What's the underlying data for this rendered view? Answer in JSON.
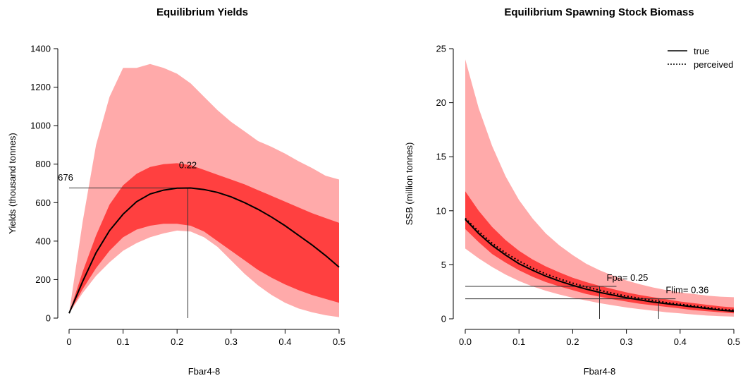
{
  "colors": {
    "outer_band": "#ffaaaa",
    "inner_band": "#ff4040",
    "line": "#000000"
  },
  "chart_data": [
    {
      "type": "area",
      "title": "Equilibrium Yields",
      "xlabel": "Fbar4-8",
      "ylabel": "Yields (thousand tonnes)",
      "xlim": [
        0,
        0.5
      ],
      "ylim": [
        0,
        1400
      ],
      "xticks": [
        0,
        0.1,
        0.2,
        0.3,
        0.4,
        0.5
      ],
      "xtick_labels": [
        "0",
        "0.1",
        "0.2",
        "0.3",
        "0.4",
        "0.5"
      ],
      "yticks": [
        0,
        200,
        400,
        600,
        800,
        1000,
        1200,
        1400
      ],
      "ytick_labels": [
        "0",
        "200",
        "400",
        "600",
        "800",
        "1000",
        "1200",
        "1400"
      ],
      "x": [
        0,
        0.025,
        0.05,
        0.075,
        0.1,
        0.125,
        0.15,
        0.175,
        0.2,
        0.225,
        0.25,
        0.275,
        0.3,
        0.325,
        0.35,
        0.375,
        0.4,
        0.425,
        0.45,
        0.475,
        0.5
      ],
      "series": [
        {
          "role": "median",
          "values": [
            25,
            190,
            340,
            455,
            540,
            605,
            645,
            665,
            675,
            676,
            668,
            653,
            630,
            600,
            565,
            525,
            480,
            430,
            380,
            325,
            265
          ]
        },
        {
          "role": "inner_band_upper",
          "values": [
            25,
            240,
            430,
            590,
            690,
            750,
            785,
            800,
            805,
            795,
            770,
            745,
            720,
            695,
            665,
            635,
            605,
            575,
            545,
            520,
            495
          ]
        },
        {
          "role": "inner_band_lower",
          "values": [
            25,
            150,
            260,
            350,
            420,
            460,
            480,
            490,
            490,
            480,
            450,
            400,
            350,
            300,
            250,
            210,
            175,
            145,
            120,
            100,
            80
          ]
        },
        {
          "role": "outer_band_upper",
          "values": [
            25,
            500,
            900,
            1150,
            1300,
            1300,
            1320,
            1300,
            1270,
            1220,
            1150,
            1080,
            1020,
            970,
            920,
            890,
            855,
            815,
            780,
            740,
            720
          ]
        },
        {
          "role": "outer_band_lower",
          "values": [
            25,
            130,
            220,
            290,
            350,
            390,
            420,
            440,
            455,
            450,
            420,
            370,
            300,
            230,
            170,
            120,
            80,
            50,
            30,
            15,
            5
          ]
        }
      ],
      "reference": {
        "x": 0.22,
        "y": 676
      },
      "annotations": [
        {
          "text": "0.22",
          "x": 0.22,
          "y": 790
        },
        {
          "text": "676",
          "x": -0.005,
          "y": 715
        }
      ]
    },
    {
      "type": "area",
      "title": "Equilibrium Spawning Stock Biomass",
      "xlabel": "Fbar4-8",
      "ylabel": "SSB (million tonnes)",
      "xlim": [
        0,
        0.5
      ],
      "ylim": [
        0,
        25
      ],
      "xticks": [
        0,
        0.1,
        0.2,
        0.3,
        0.4,
        0.5
      ],
      "xtick_labels": [
        "0.0",
        "0.1",
        "0.2",
        "0.3",
        "0.4",
        "0.5"
      ],
      "yticks": [
        0,
        5,
        10,
        15,
        20,
        25
      ],
      "ytick_labels": [
        "0",
        "5",
        "10",
        "15",
        "20",
        "25"
      ],
      "x": [
        0,
        0.025,
        0.05,
        0.075,
        0.1,
        0.125,
        0.15,
        0.175,
        0.2,
        0.225,
        0.25,
        0.275,
        0.3,
        0.325,
        0.35,
        0.375,
        0.4,
        0.425,
        0.45,
        0.475,
        0.5
      ],
      "series": [
        {
          "name": "true",
          "style": "solid",
          "values": [
            9.2,
            7.9,
            6.8,
            5.9,
            5.1,
            4.5,
            3.95,
            3.5,
            3.1,
            2.75,
            2.45,
            2.2,
            1.95,
            1.75,
            1.55,
            1.4,
            1.25,
            1.1,
            0.95,
            0.8,
            0.7
          ]
        },
        {
          "name": "perceived",
          "style": "dotted",
          "values": [
            9.3,
            8.1,
            7.0,
            6.1,
            5.35,
            4.7,
            4.15,
            3.7,
            3.3,
            2.95,
            2.65,
            2.35,
            2.1,
            1.9,
            1.7,
            1.5,
            1.35,
            1.2,
            1.05,
            0.9,
            0.8
          ]
        },
        {
          "role": "inner_band_upper",
          "values": [
            11.8,
            10.0,
            8.5,
            7.3,
            6.3,
            5.5,
            4.85,
            4.3,
            3.8,
            3.4,
            3.05,
            2.75,
            2.45,
            2.2,
            2.0,
            1.8,
            1.6,
            1.45,
            1.3,
            1.15,
            1.05
          ]
        },
        {
          "role": "inner_band_lower",
          "values": [
            8.3,
            7.1,
            6.0,
            5.2,
            4.5,
            3.9,
            3.4,
            3.0,
            2.65,
            2.3,
            2.05,
            1.8,
            1.6,
            1.4,
            1.25,
            1.1,
            0.95,
            0.8,
            0.7,
            0.6,
            0.5
          ]
        },
        {
          "role": "outer_band_upper",
          "values": [
            24.0,
            19.5,
            16.0,
            13.2,
            11.0,
            9.3,
            7.9,
            6.8,
            5.9,
            5.1,
            4.5,
            4.0,
            3.55,
            3.2,
            2.9,
            2.65,
            2.45,
            2.3,
            2.15,
            2.05,
            2.0
          ]
        },
        {
          "role": "outer_band_lower",
          "values": [
            6.5,
            5.6,
            4.8,
            4.1,
            3.5,
            3.0,
            2.6,
            2.25,
            1.95,
            1.7,
            1.45,
            1.25,
            1.05,
            0.9,
            0.75,
            0.6,
            0.5,
            0.4,
            0.3,
            0.25,
            0.2
          ]
        }
      ],
      "legend": {
        "placement": "top-right",
        "entries": [
          "true",
          "perceived"
        ]
      },
      "references": [
        {
          "label": "Fpa= 0.25",
          "x": 0.25,
          "y": 3.0
        },
        {
          "label": "Flim= 0.36",
          "x": 0.36,
          "y": 1.85
        }
      ]
    }
  ]
}
